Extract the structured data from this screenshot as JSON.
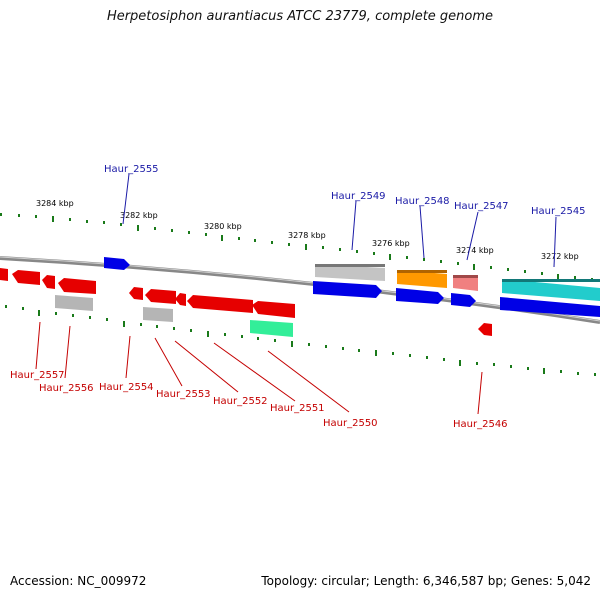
{
  "title": "Herpetosiphon aurantiacus ATCC 23779, complete genome",
  "footer": {
    "accession": "Accession: NC_009972",
    "summary": "Topology: circular; Length: 6,346,587 bp; Genes: 5,042"
  },
  "scale_labels": [
    "3284 kbp",
    "3282 kbp",
    "3280 kbp",
    "3278 kbp",
    "3276 kbp",
    "3274 kbp",
    "3272 kbp"
  ],
  "gene_labels_top": [
    "Haur_2555",
    "Haur_2549",
    "Haur_2548",
    "Haur_2547",
    "Haur_2545"
  ],
  "gene_labels_bottom": [
    "Haur_2557",
    "Haur_2556",
    "Haur_2554",
    "Haur_2553",
    "Haur_2552",
    "Haur_2551",
    "Haur_2550",
    "Haur_2546"
  ],
  "colors": {
    "forward_cds": "#0000e6",
    "reverse_cds": "#e60000",
    "rna": "#aaaaaa",
    "orange": "#ff9900",
    "pink": "#f08080",
    "cyan": "#22cccc",
    "green": "#33ee99",
    "backbone": "#888888",
    "ticks": "#1a7a1a"
  }
}
